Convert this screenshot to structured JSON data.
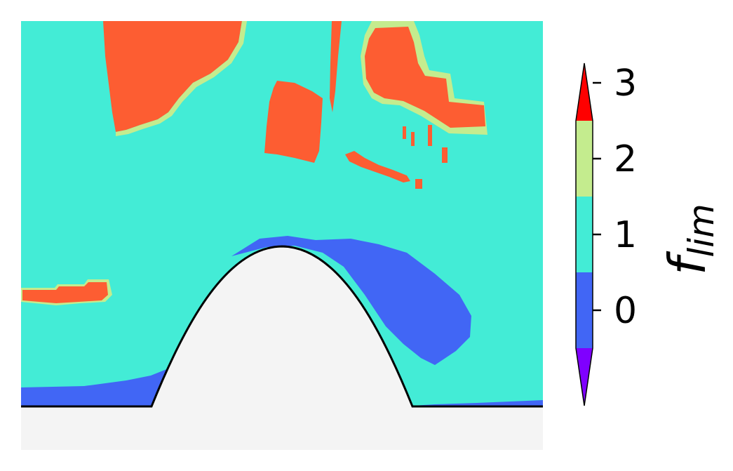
{
  "chart_data": {
    "type": "heatmap",
    "title": "",
    "xlabel": "",
    "ylabel": "",
    "colorbar": {
      "label": "f",
      "label_subscript": "lim",
      "ticks": [
        "0",
        "1",
        "2",
        "3"
      ],
      "levels": [
        -1,
        0,
        1,
        2,
        3,
        4
      ],
      "extend": "both",
      "colors": {
        "under": "#7f00ff",
        "level_0": "#4166f5",
        "level_1": "#43ecd6",
        "level_2": "#c4ec8e",
        "level_3": "#fd5d32",
        "over": "#ff0000"
      }
    },
    "axes_visible": false,
    "background_solid_color": "#f4f4f4",
    "boundary_line_color": "#000000"
  }
}
